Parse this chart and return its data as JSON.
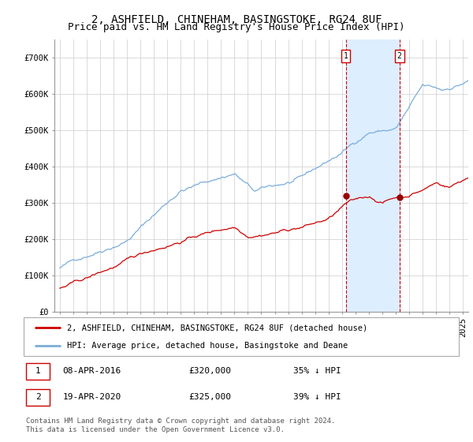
{
  "title": "2, ASHFIELD, CHINEHAM, BASINGSTOKE, RG24 8UF",
  "subtitle": "Price paid vs. HM Land Registry's House Price Index (HPI)",
  "ylim": [
    0,
    750000
  ],
  "yticks": [
    0,
    100000,
    200000,
    300000,
    400000,
    500000,
    600000,
    700000
  ],
  "ytick_labels": [
    "£0",
    "£100K",
    "£200K",
    "£300K",
    "£400K",
    "£500K",
    "£600K",
    "£700K"
  ],
  "hpi_color": "#7aaddb",
  "price_color": "#cc0000",
  "shade_color": "#ddeeff",
  "vline_color": "#cc0000",
  "sale1_year": 2016.28,
  "sale2_year": 2020.28,
  "sale1_price": 320000,
  "sale2_price": 315000,
  "legend1": "2, ASHFIELD, CHINEHAM, BASINGSTOKE, RG24 8UF (detached house)",
  "legend2": "HPI: Average price, detached house, Basingstoke and Deane",
  "footer": "Contains HM Land Registry data © Crown copyright and database right 2024.\nThis data is licensed under the Open Government Licence v3.0.",
  "grid_color": "#cccccc",
  "title_fontsize": 10,
  "subtitle_fontsize": 9,
  "tick_fontsize": 7.5
}
